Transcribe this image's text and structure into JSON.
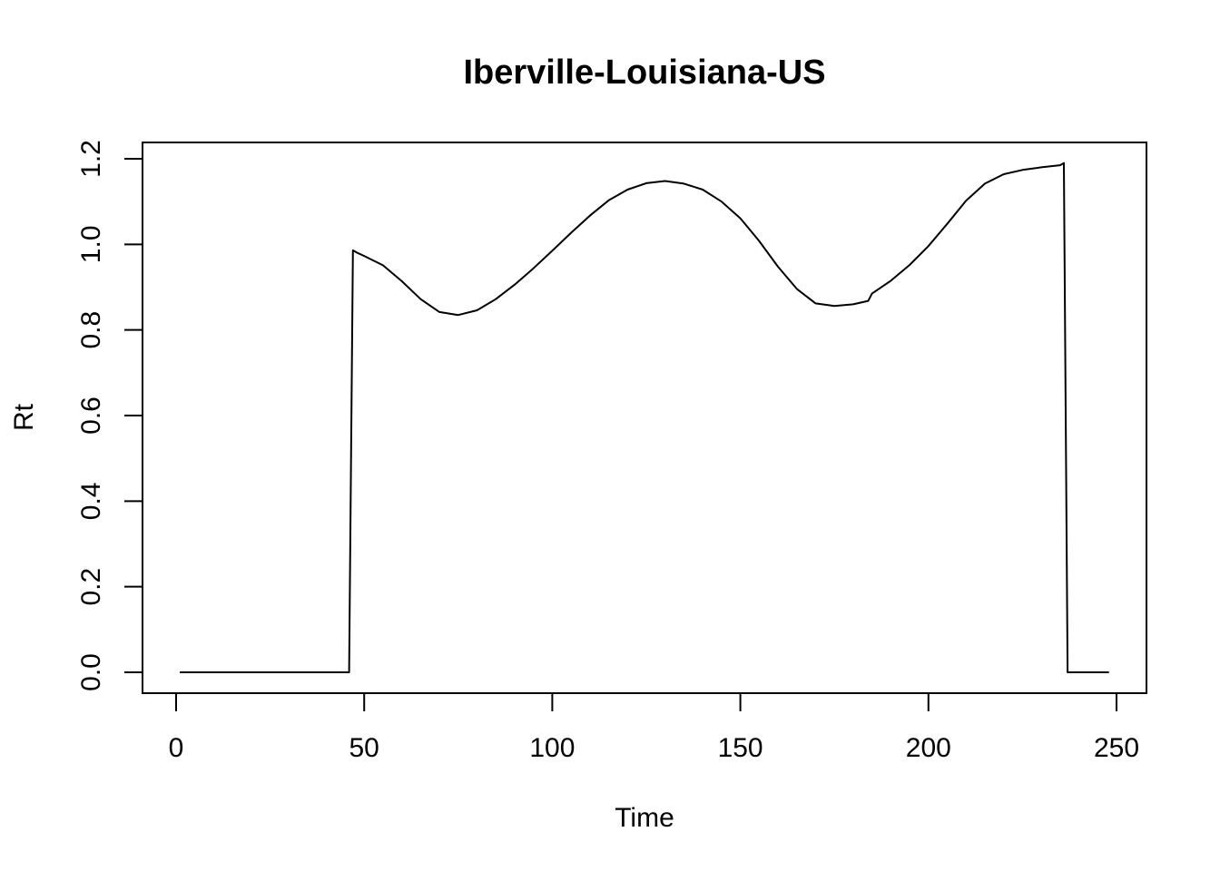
{
  "chart_data": {
    "type": "line",
    "title": "Iberville-Louisiana-US",
    "xlabel": "Time",
    "ylabel": "Rt",
    "xlim": [
      0,
      250
    ],
    "ylim": [
      0.0,
      1.2
    ],
    "x_ticks": [
      "0",
      "50",
      "100",
      "150",
      "200",
      "250"
    ],
    "y_ticks": [
      "0.0",
      "0.2",
      "0.4",
      "0.6",
      "0.8",
      "1.0",
      "1.2"
    ],
    "grid": false,
    "legend": "none",
    "series": [
      {
        "color": "#000000",
        "x": [
          1,
          10,
          20,
          30,
          40,
          46,
          47,
          48,
          50,
          55,
          60,
          65,
          70,
          75,
          80,
          85,
          90,
          95,
          100,
          105,
          110,
          115,
          120,
          125,
          130,
          135,
          140,
          145,
          150,
          155,
          160,
          165,
          170,
          175,
          180,
          184,
          185,
          190,
          195,
          200,
          205,
          210,
          215,
          220,
          225,
          230,
          235,
          236,
          237,
          240,
          245,
          248
        ],
        "y": [
          0,
          0,
          0,
          0,
          0,
          0,
          0.986,
          0.981,
          0.973,
          0.951,
          0.914,
          0.872,
          0.842,
          0.835,
          0.846,
          0.872,
          0.906,
          0.944,
          0.985,
          1.027,
          1.067,
          1.103,
          1.128,
          1.143,
          1.148,
          1.142,
          1.128,
          1.1,
          1.061,
          1.008,
          0.948,
          0.896,
          0.862,
          0.856,
          0.86,
          0.868,
          0.885,
          0.915,
          0.952,
          0.996,
          1.048,
          1.102,
          1.142,
          1.164,
          1.174,
          1.18,
          1.185,
          1.19,
          0,
          0,
          0,
          0
        ]
      }
    ]
  }
}
